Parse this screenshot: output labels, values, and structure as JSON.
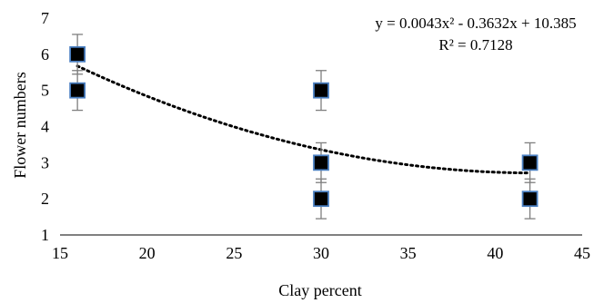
{
  "chart_data": {
    "type": "scatter",
    "xlabel": "Clay percent",
    "ylabel": "Flower numbers",
    "xlim": [
      15,
      45
    ],
    "ylim": [
      1,
      7
    ],
    "x_ticks": [
      "15",
      "20",
      "25",
      "30",
      "35",
      "40",
      "45"
    ],
    "y_ticks": [
      "1",
      "2",
      "3",
      "4",
      "5",
      "6",
      "7"
    ],
    "grid": false,
    "legend": "none",
    "series": [
      {
        "points": [
          {
            "x": 16,
            "y": 6
          },
          {
            "x": 16,
            "y": 5
          },
          {
            "x": 30,
            "y": 5
          },
          {
            "x": 30,
            "y": 3
          },
          {
            "x": 30,
            "y": 2
          },
          {
            "x": 42,
            "y": 3
          },
          {
            "x": 42,
            "y": 2
          }
        ],
        "error": 0.55,
        "marker": "square",
        "marker_fill": "#000000",
        "marker_edge": "#4a7fc1",
        "errorbar_color": "#7f7f7f"
      }
    ],
    "trendline": {
      "type": "polynomial",
      "coefficients": [
        0.0043,
        -0.3632,
        10.385
      ],
      "x_range": [
        16,
        42
      ],
      "style": "dotted",
      "equation_label": "y = 0.0043x² - 0.3632x + 10.385",
      "r2_label": "R² = 0.7128"
    }
  }
}
